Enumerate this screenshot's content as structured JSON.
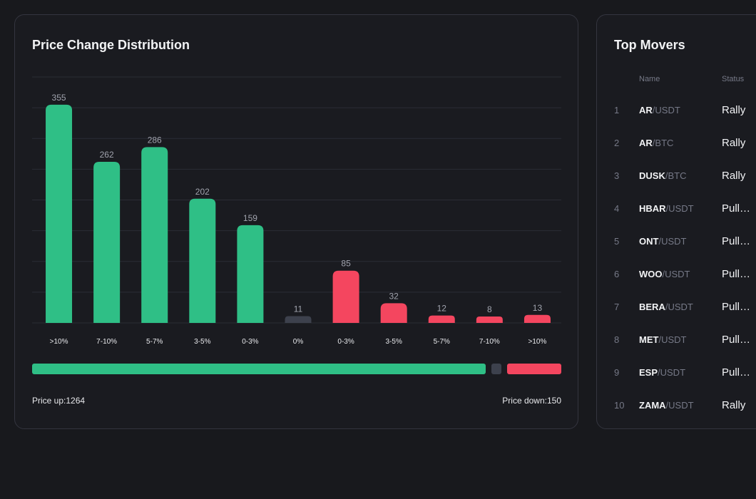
{
  "distribution": {
    "title": "Price Change Distribution",
    "price_up_label": "Price up:1264",
    "price_down_label": "Price down:150",
    "ratio": {
      "up": 1264,
      "flat": 11,
      "down": 150
    },
    "colors": {
      "up": "#2fbf86",
      "down": "#f4465f",
      "flat": "#3d414d"
    }
  },
  "chart_data": {
    "type": "bar",
    "title": "Price Change Distribution",
    "categories": [
      ">10%",
      "7-10%",
      "5-7%",
      "3-5%",
      "0-3%",
      "0%",
      "0-3%",
      "3-5%",
      "5-7%",
      "7-10%",
      ">10%"
    ],
    "values": [
      355,
      262,
      286,
      202,
      159,
      11,
      85,
      32,
      12,
      8,
      13
    ],
    "direction": [
      "up",
      "up",
      "up",
      "up",
      "up",
      "flat",
      "down",
      "down",
      "down",
      "down",
      "down"
    ],
    "ylim": [
      0,
      400
    ],
    "grid": true,
    "xlabel": "",
    "ylabel": ""
  },
  "movers": {
    "title": "Top Movers",
    "columns": {
      "name": "Name",
      "status": "Status"
    },
    "rows": [
      {
        "rank": "1",
        "base": "AR",
        "quote": "/USDT",
        "status": "Rally"
      },
      {
        "rank": "2",
        "base": "AR",
        "quote": "/BTC",
        "status": "Rally"
      },
      {
        "rank": "3",
        "base": "DUSK",
        "quote": "/BTC",
        "status": "Rally"
      },
      {
        "rank": "4",
        "base": "HBAR",
        "quote": "/USDT",
        "status": "Pullback"
      },
      {
        "rank": "5",
        "base": "ONT",
        "quote": "/USDT",
        "status": "Pullback"
      },
      {
        "rank": "6",
        "base": "WOO",
        "quote": "/USDT",
        "status": "Pullback"
      },
      {
        "rank": "7",
        "base": "BERA",
        "quote": "/USDT",
        "status": "Pullback"
      },
      {
        "rank": "8",
        "base": "MET",
        "quote": "/USDT",
        "status": "Pullback"
      },
      {
        "rank": "9",
        "base": "ESP",
        "quote": "/USDT",
        "status": "Pullback"
      },
      {
        "rank": "10",
        "base": "ZAMA",
        "quote": "/USDT",
        "status": "Rally"
      }
    ]
  }
}
